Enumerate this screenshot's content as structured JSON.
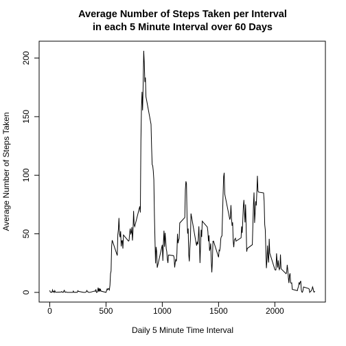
{
  "chart_data": {
    "type": "line",
    "title": [
      "Average Number of Steps Taken per Interval",
      "in each 5 Minute Interval over 60 Days"
    ],
    "xlabel": "Daily 5 Minute Time Interval",
    "ylabel": "Average Number of Steps Taken",
    "color": "#000000",
    "xlim": [
      -94.2,
      2449.2
    ],
    "ylim": [
      -8.25,
      214.4
    ],
    "xticks": [
      0,
      500,
      1000,
      1500,
      2000
    ],
    "yticks": [
      0,
      50,
      100,
      150,
      200
    ],
    "series": [
      {
        "name": "steps",
        "x": [
          0,
          5,
          10,
          15,
          20,
          25,
          30,
          35,
          40,
          45,
          50,
          55,
          100,
          105,
          110,
          115,
          120,
          125,
          130,
          135,
          140,
          145,
          150,
          155,
          200,
          205,
          210,
          215,
          220,
          225,
          230,
          235,
          240,
          245,
          250,
          255,
          300,
          305,
          310,
          315,
          320,
          325,
          330,
          335,
          340,
          345,
          350,
          355,
          400,
          405,
          410,
          415,
          420,
          425,
          430,
          435,
          440,
          445,
          450,
          455,
          500,
          505,
          510,
          515,
          520,
          525,
          530,
          535,
          540,
          545,
          550,
          555,
          600,
          605,
          610,
          615,
          620,
          625,
          630,
          635,
          640,
          645,
          650,
          655,
          700,
          705,
          710,
          715,
          720,
          725,
          730,
          735,
          740,
          745,
          750,
          755,
          800,
          805,
          810,
          815,
          820,
          825,
          830,
          835,
          840,
          845,
          850,
          855,
          900,
          905,
          910,
          915,
          920,
          925,
          930,
          935,
          940,
          945,
          950,
          955,
          1000,
          1005,
          1010,
          1015,
          1020,
          1025,
          1030,
          1035,
          1040,
          1045,
          1050,
          1055,
          1100,
          1105,
          1110,
          1115,
          1120,
          1125,
          1130,
          1135,
          1140,
          1145,
          1150,
          1155,
          1200,
          1205,
          1210,
          1215,
          1220,
          1225,
          1230,
          1235,
          1240,
          1245,
          1250,
          1255,
          1300,
          1305,
          1310,
          1315,
          1320,
          1325,
          1330,
          1335,
          1340,
          1345,
          1350,
          1355,
          1400,
          1405,
          1410,
          1415,
          1420,
          1425,
          1430,
          1435,
          1440,
          1445,
          1450,
          1455,
          1500,
          1505,
          1510,
          1515,
          1520,
          1525,
          1530,
          1535,
          1540,
          1545,
          1550,
          1555,
          1600,
          1605,
          1610,
          1615,
          1620,
          1625,
          1630,
          1635,
          1640,
          1645,
          1650,
          1655,
          1700,
          1705,
          1710,
          1715,
          1720,
          1725,
          1730,
          1735,
          1740,
          1745,
          1750,
          1755,
          1800,
          1805,
          1810,
          1815,
          1820,
          1825,
          1830,
          1835,
          1840,
          1845,
          1850,
          1855,
          1900,
          1905,
          1910,
          1915,
          1920,
          1925,
          1930,
          1935,
          1940,
          1945,
          1950,
          1955,
          2000,
          2005,
          2010,
          2015,
          2020,
          2025,
          2030,
          2035,
          2040,
          2045,
          2050,
          2055,
          2100,
          2105,
          2110,
          2115,
          2120,
          2125,
          2130,
          2135,
          2140,
          2145,
          2150,
          2155,
          2200,
          2205,
          2210,
          2215,
          2220,
          2225,
          2230,
          2235,
          2240,
          2245,
          2250,
          2255,
          2300,
          2305,
          2310,
          2315,
          2320,
          2325,
          2330,
          2335,
          2340,
          2345,
          2350,
          2355
        ],
        "values": [
          1.7,
          0.3,
          0.1,
          0.2,
          0.1,
          2.1,
          0.5,
          0.9,
          0,
          1.5,
          0.3,
          0.1,
          0.3,
          0.7,
          0.2,
          0.3,
          0,
          1.1,
          1.8,
          0.2,
          0.2,
          0.4,
          0.3,
          0,
          0,
          0,
          1.1,
          0,
          0,
          0.1,
          0,
          0.2,
          0,
          0,
          1.5,
          0.9,
          0,
          0,
          0,
          0,
          0.2,
          0.6,
          1.6,
          0.6,
          0.5,
          0.1,
          0,
          0,
          1.2,
          0.9,
          2.6,
          0,
          0.3,
          0.4,
          4.1,
          0.7,
          3.5,
          0.8,
          3.1,
          1.1,
          0,
          1.6,
          3.0,
          2.2,
          3.3,
          3.0,
          2.1,
          6.1,
          16.0,
          18.3,
          39.5,
          44.5,
          31.5,
          49.3,
          53.8,
          63.5,
          50.0,
          47.1,
          52.2,
          39.3,
          44.0,
          44.2,
          37.4,
          49.0,
          43.8,
          44.4,
          50.5,
          54.5,
          49.9,
          51.0,
          55.7,
          44.3,
          52.3,
          69.5,
          57.8,
          56.2,
          73.4,
          68.2,
          129.4,
          157.5,
          171.2,
          155.4,
          177.3,
          206.2,
          195.9,
          179.6,
          183.4,
          167.0,
          143.5,
          124.0,
          109.1,
          108.1,
          103.7,
          96.0,
          66.2,
          45.2,
          24.8,
          38.8,
          35.0,
          21.1,
          40.6,
          27.0,
          42.4,
          52.7,
          38.9,
          50.8,
          44.3,
          37.4,
          34.7,
          28.3,
          25.1,
          31.9,
          31.4,
          29.7,
          21.3,
          25.5,
          28.4,
          26.5,
          33.4,
          50.0,
          42.0,
          44.6,
          46.0,
          59.2,
          63.9,
          87.7,
          94.8,
          92.8,
          63.4,
          50.2,
          54.5,
          32.4,
          26.5,
          37.7,
          45.1,
          67.3,
          42.3,
          39.9,
          43.3,
          41.0,
          46.2,
          56.4,
          42.8,
          25.1,
          40.0,
          53.5,
          47.3,
          60.8,
          55.8,
          52.0,
          43.6,
          48.7,
          35.5,
          37.5,
          41.8,
          27.5,
          17.1,
          26.1,
          43.6,
          43.8,
          30.0,
          36.1,
          35.5,
          38.8,
          46.0,
          47.8,
          48.1,
          65.3,
          82.9,
          98.7,
          102.1,
          84.0,
          62.1,
          64.1,
          74.5,
          63.2,
          56.9,
          59.8,
          43.9,
          38.6,
          44.7,
          45.5,
          46.2,
          43.7,
          46.6,
          56.3,
          50.7,
          61.2,
          72.7,
          78.9,
          68.9,
          59.7,
          75.1,
          56.5,
          34.8,
          37.5,
          40.7,
          58.0,
          74.7,
          85.3,
          59.3,
          67.8,
          77.7,
          74.2,
          85.3,
          99.5,
          86.6,
          85.6,
          84.9,
          77.8,
          58.0,
          53.4,
          36.3,
          20.7,
          27.4,
          40.0,
          30.2,
          25.5,
          45.7,
          33.5,
          19.6,
          19.0,
          19.3,
          33.3,
          26.8,
          21.2,
          27.3,
          21.3,
          19.5,
          21.3,
          32.3,
          20.2,
          15.9,
          17.2,
          23.5,
          19.2,
          12.5,
          8.0,
          14.7,
          16.3,
          8.7,
          7.8,
          8.1,
          2.6,
          1.5,
          3.7,
          4.8,
          8.5,
          7.1,
          8.7,
          9.8,
          2.2,
          0.3,
          0.1,
          1.6,
          4.6,
          3.3,
          2.8,
          0,
          0.8,
          1.0,
          1.6,
          2.6,
          4.7,
          3.3,
          0.6,
          0.2,
          1.1
        ]
      }
    ]
  }
}
